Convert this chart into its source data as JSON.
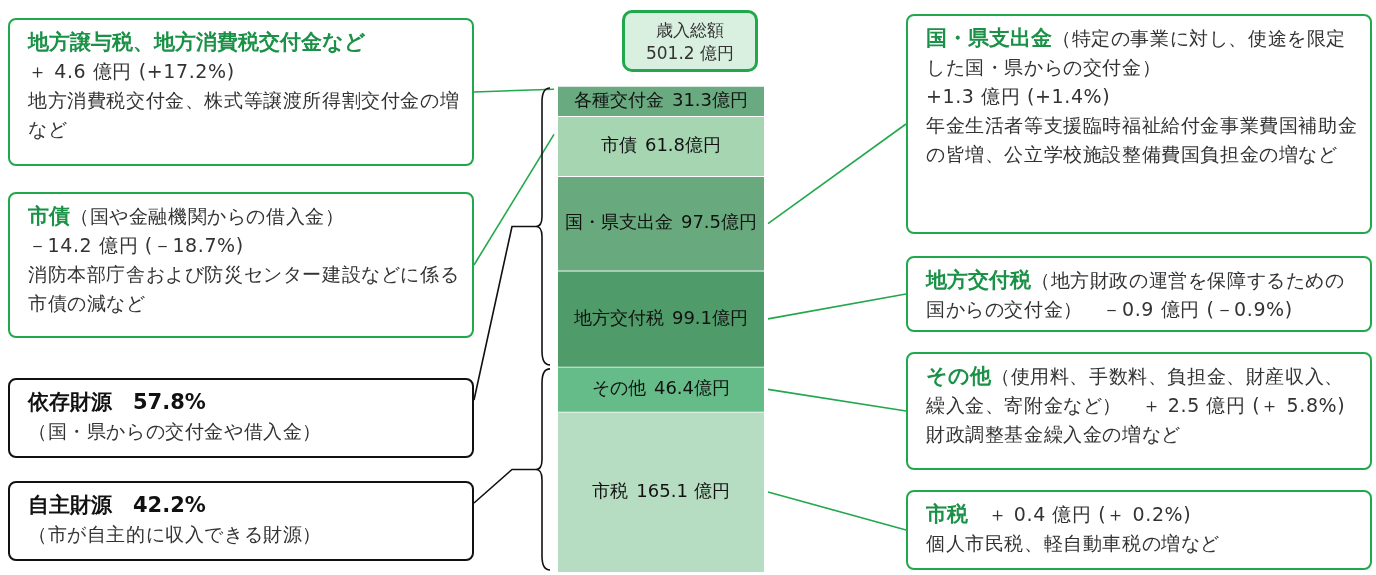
{
  "chart_data": {
    "type": "bar",
    "stacked": true,
    "categories": [
      null
    ],
    "series": [
      {
        "name": "市税",
        "color": "#b6ddc1",
        "values": [
          165.1
        ],
        "value_labels": [
          "165.1 億円"
        ]
      },
      {
        "name": "その他",
        "color": "#66bc88",
        "values": [
          46.4
        ],
        "value_labels": [
          "46.4億円"
        ]
      },
      {
        "name": "地方交付税",
        "color": "#4f9b69",
        "values": [
          99.1
        ],
        "value_labels": [
          "99.1億円"
        ]
      },
      {
        "name": "国・県支出金",
        "color": "#69a97e",
        "values": [
          97.5
        ],
        "value_labels": [
          "97.5億円"
        ]
      },
      {
        "name": "市債",
        "color": "#a6d5b2",
        "values": [
          61.8
        ],
        "value_labels": [
          "61.8億円"
        ]
      },
      {
        "name": "各種交付金",
        "color": "#6aaa80",
        "values": [
          31.3
        ],
        "value_labels": [
          "31.3億円"
        ]
      }
    ],
    "annotations": [
      "歳入総額",
      "501.2 億円",
      "地方譲与税、地方消費税交付金など",
      "＋ 4.6 億円 (+17.2%)",
      "地方消費税交付金、株式等譲渡所得割交付金の増など",
      "市債",
      "（国や金融機関からの借入金）",
      "－14.2 億円 (－18.7%)",
      "消防本部庁舎および防災センター建設などに係る市債の減など",
      "依存財源　57.8%",
      "（国・県からの交付金や借入金）",
      "自主財源　42.2%",
      "（市が自主的に収入できる財源）",
      "国・県支出金",
      "（特定の事業に対し、使途を限定した国・県からの交付金）",
      "+1.3 億円 (+1.4%)",
      "年金生活者等支援臨時福祉給付金事業費国補助金の皆増、公立学校施設整備費国負担金の増など",
      "地方交付税",
      "（地方財政の運営を保障するための国からの交付金）　－0.9 億円 (－0.9%)",
      "その他",
      "（使用料、手数料、負担金、財産収入、繰入金、寄附金など）　＋ 2.5 億円 (＋ 5.8%)",
      "財政調整基金繰入金の増など",
      "市税",
      "　＋ 0.4 億円 (＋ 0.2%)",
      "個人市民税、軽自動車税の増など"
    ],
    "legend": false
  }
}
